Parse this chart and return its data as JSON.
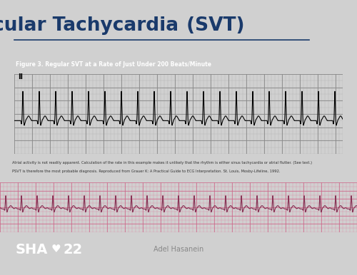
{
  "title_underline": "Supraventricular Tachycardia",
  "title_normal": " (SVT)",
  "title_color": "#1a3a6b",
  "slide_bg": "#d0d0d0",
  "figure_caption": "Figure 3. Regular SVT at a Rate of Just Under 200 Beats/Minute",
  "pink_ecg_bg": "#f5b8c8",
  "pink_grid_color": "#e080a0",
  "footer_bg": "#1a1a1a",
  "footer_text": "Adel Hasanein",
  "annotation_text": "Atrial activity is not readily apparent. Calculation of the rate in this example makes it unlikely that the rhythm is either sinus tachycardia or atrial flutter. (See text.) PSVT is therefore the most probable diagnosis. Reproduced from Grauer K: A Practical Guide to ECG Interpretation. St. Louis, Mosby-Lifeline, 1992.",
  "lead_label": "II"
}
